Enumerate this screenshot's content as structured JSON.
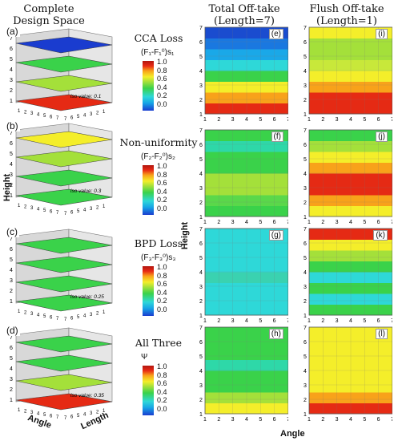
{
  "headers": {
    "col1": "Complete\nDesign Space",
    "col2": "Total Off-take\n(Length=7)",
    "col3": "Flush Off-take\n(Length=1)"
  },
  "rows": [
    {
      "letter": "(a)",
      "label": "CCA Loss",
      "cb_title": "(F₁-F₁⁰)s₁",
      "iso": "iso value: 0.1",
      "map2": "(e)",
      "map3": "(i)"
    },
    {
      "letter": "(b)",
      "label": "Non-uniformity",
      "cb_title": "(F₂-F₂⁰)s₂",
      "iso": "iso value: 0.3",
      "map2": "(f)",
      "map3": "(j)"
    },
    {
      "letter": "(c)",
      "label": "BPD Loss",
      "cb_title": "(F₃-F₃⁰)s₃",
      "iso": "iso value: 0.25",
      "map2": "(g)",
      "map3": "(k)"
    },
    {
      "letter": "(d)",
      "label": "All Three",
      "cb_title": "Ψ",
      "iso": "iso value: 0.35",
      "map2": "(h)",
      "map3": "(l)"
    }
  ],
  "colorbar_ticks": [
    "1.0",
    "0.8",
    "0.6",
    "0.4",
    "0.2",
    "0.0"
  ],
  "axis_ticks": [
    "1",
    "2",
    "3",
    "4",
    "5",
    "6",
    "7"
  ],
  "labels": {
    "height_left": "Height",
    "height_mid": "Height",
    "angle_left": "Angle",
    "length_left": "Length",
    "angle_bottom": "Angle"
  },
  "colors": {
    "red": "#e52a14",
    "orange": "#f8a21a",
    "yellow": "#f4ee2a",
    "lime": "#a4e03a",
    "green": "#3ad24a",
    "cyan": "#2ed8d8",
    "blue": "#1a3ccf"
  }
}
